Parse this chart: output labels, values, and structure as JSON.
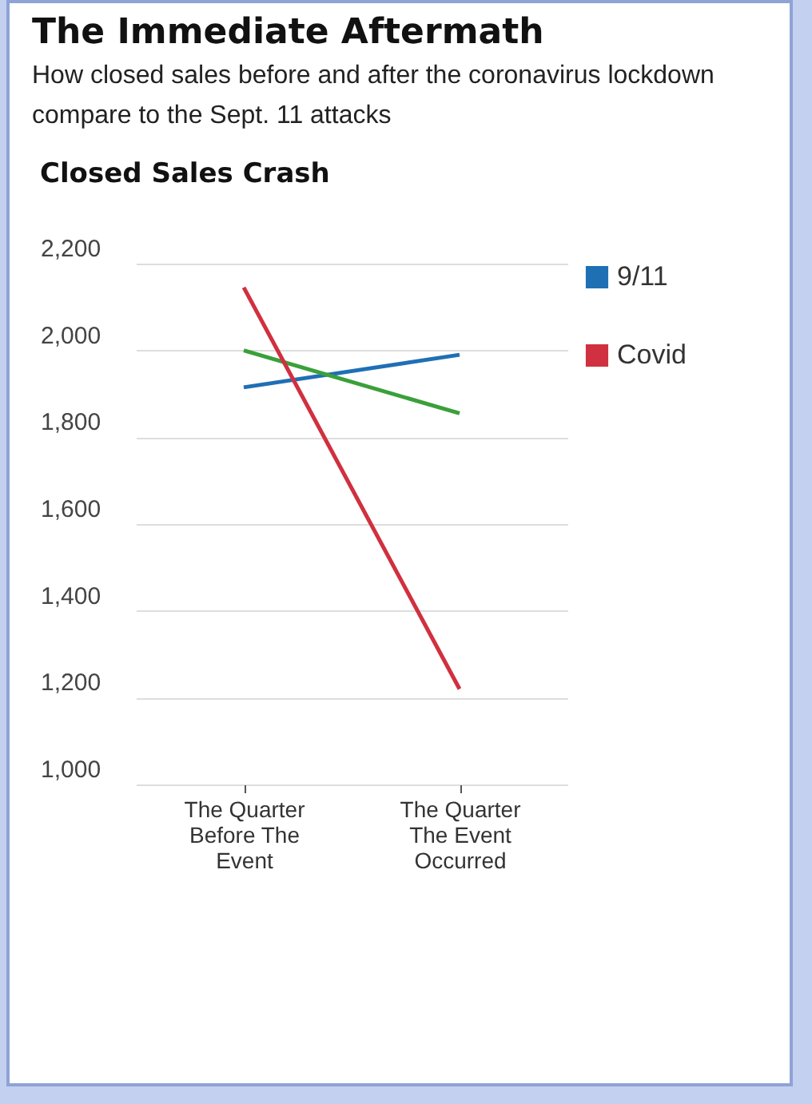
{
  "chart_data": {
    "type": "line",
    "title": "The Immediate Aftermath",
    "subtitle": "How closed sales before and after the coronavirus lockdown compare to the Sept. 11 attacks",
    "ylabel": null,
    "annotations": [
      "Closed Sales Crash"
    ],
    "categories": [
      "The Quarter Before The Event",
      "The Quarter The Event Occurred"
    ],
    "series": [
      {
        "name": "9/11",
        "color": "#1f6fb5",
        "values": [
          1915,
          1990
        ]
      },
      {
        "color": "#3aa03a",
        "values": [
          2000,
          1855
        ]
      },
      {
        "name": "Covid",
        "color": "#d0303f",
        "values": [
          2145,
          1220
        ]
      }
    ],
    "ylim": [
      1000,
      2200
    ],
    "yticks": [
      {
        "value": 1000,
        "label": "1,000"
      },
      {
        "value": 1200,
        "label": "1,200"
      },
      {
        "value": 1400,
        "label": "1,400"
      },
      {
        "value": 1600,
        "label": "1,600"
      },
      {
        "value": 1800,
        "label": "1,800"
      },
      {
        "value": 2000,
        "label": "2,000"
      },
      {
        "value": 2200,
        "label": "2,200"
      }
    ],
    "grid": "y",
    "legend": "right",
    "marker": "none"
  }
}
